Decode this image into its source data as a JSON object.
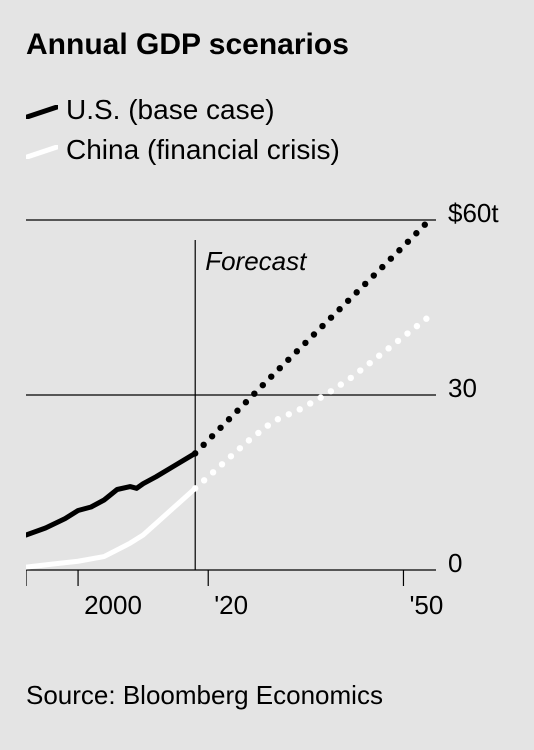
{
  "title": "Annual GDP scenarios",
  "legend": {
    "us": {
      "label": "U.S. (base case)",
      "color": "#000000"
    },
    "china": {
      "label": "China (financial crisis)",
      "color": "#ffffff"
    }
  },
  "chart": {
    "type": "line",
    "background_color": "#e4e4e4",
    "grid_color": "#000000",
    "yaxis": {
      "lim": [
        0,
        60
      ],
      "ticks": [
        0,
        30,
        60
      ],
      "tick_labels": [
        "0",
        "30",
        "$60t"
      ],
      "label_fontsize": 26
    },
    "xaxis": {
      "lim": [
        1992,
        2055
      ],
      "ticks": [
        2000,
        2020,
        2050
      ],
      "tick_labels": [
        "2000",
        "'20",
        "'50"
      ],
      "tick_mark_length": 16,
      "label_fontsize": 26
    },
    "forecast": {
      "label": "Forecast",
      "divider_year": 2018,
      "label_fontsize": 26,
      "font_style": "italic"
    },
    "series": {
      "us": {
        "color": "#000000",
        "solid_width": 5,
        "dot_radius": 3.2,
        "solid": [
          {
            "x": 1992,
            "y": 6.0
          },
          {
            "x": 1995,
            "y": 7.2
          },
          {
            "x": 1998,
            "y": 8.8
          },
          {
            "x": 2000,
            "y": 10.2
          },
          {
            "x": 2002,
            "y": 10.8
          },
          {
            "x": 2004,
            "y": 12.0
          },
          {
            "x": 2006,
            "y": 13.8
          },
          {
            "x": 2008,
            "y": 14.3
          },
          {
            "x": 2009,
            "y": 14.0
          },
          {
            "x": 2010,
            "y": 14.8
          },
          {
            "x": 2012,
            "y": 16.0
          },
          {
            "x": 2015,
            "y": 18.0
          },
          {
            "x": 2018,
            "y": 20.0
          }
        ],
        "dotted": [
          {
            "x": 2018,
            "y": 20.0
          },
          {
            "x": 2022,
            "y": 24.5
          },
          {
            "x": 2026,
            "y": 29.0
          },
          {
            "x": 2030,
            "y": 33.5
          },
          {
            "x": 2035,
            "y": 39.0
          },
          {
            "x": 2040,
            "y": 44.5
          },
          {
            "x": 2045,
            "y": 50.0
          },
          {
            "x": 2050,
            "y": 55.5
          },
          {
            "x": 2054,
            "y": 60.0
          }
        ]
      },
      "china": {
        "color": "#ffffff",
        "solid_width": 5,
        "dot_radius": 3.2,
        "solid": [
          {
            "x": 1992,
            "y": 0.5
          },
          {
            "x": 1996,
            "y": 1.0
          },
          {
            "x": 2000,
            "y": 1.5
          },
          {
            "x": 2004,
            "y": 2.3
          },
          {
            "x": 2008,
            "y": 4.6
          },
          {
            "x": 2010,
            "y": 6.0
          },
          {
            "x": 2012,
            "y": 8.0
          },
          {
            "x": 2015,
            "y": 11.0
          },
          {
            "x": 2018,
            "y": 14.0
          }
        ],
        "dotted": [
          {
            "x": 2018,
            "y": 14.0
          },
          {
            "x": 2022,
            "y": 18.0
          },
          {
            "x": 2026,
            "y": 22.0
          },
          {
            "x": 2030,
            "y": 25.5
          },
          {
            "x": 2034,
            "y": 27.5
          },
          {
            "x": 2038,
            "y": 30.0
          },
          {
            "x": 2042,
            "y": 33.0
          },
          {
            "x": 2046,
            "y": 36.5
          },
          {
            "x": 2050,
            "y": 40.0
          },
          {
            "x": 2054,
            "y": 43.5
          }
        ]
      }
    }
  },
  "source": "Source: Bloomberg Economics"
}
